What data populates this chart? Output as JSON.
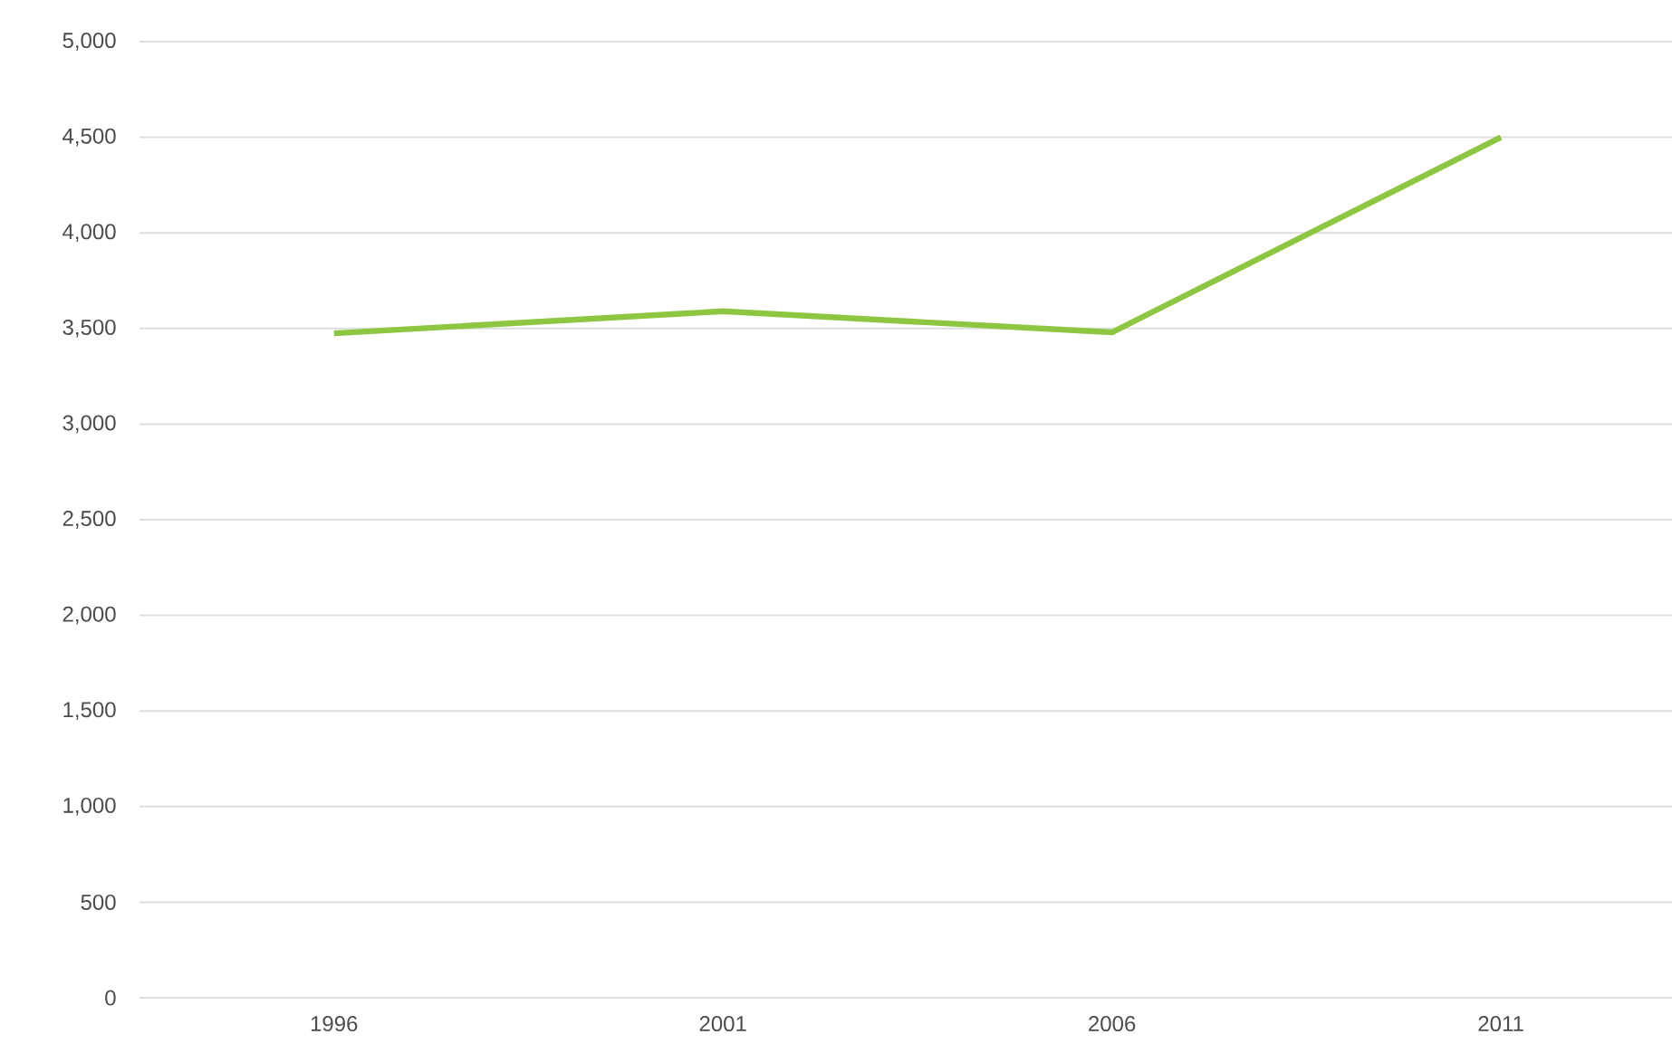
{
  "chart_data": {
    "type": "line",
    "categories": [
      "1996",
      "2001",
      "2006",
      "2011"
    ],
    "series": [
      {
        "color": "#8dc641",
        "values": [
          3475,
          3590,
          3480,
          4500
        ]
      }
    ],
    "ylim": [
      0,
      5000
    ],
    "yticks": [
      0,
      500,
      {
        "value": 1000,
        "label": "1,000"
      },
      {
        "value": 1500,
        "label": "1,500"
      },
      {
        "value": 2000,
        "label": "2,000"
      },
      {
        "value": 2500,
        "label": "2,500"
      },
      {
        "value": 3000,
        "label": "3,000"
      },
      {
        "value": 3500,
        "label": "3,500"
      },
      {
        "value": 4000,
        "label": "4,000"
      },
      {
        "value": 4500,
        "label": "4,500"
      },
      {
        "value": 5000,
        "label": "5,000"
      }
    ],
    "grid": "y",
    "legend": false,
    "marker": "none",
    "line_style": "solid"
  }
}
